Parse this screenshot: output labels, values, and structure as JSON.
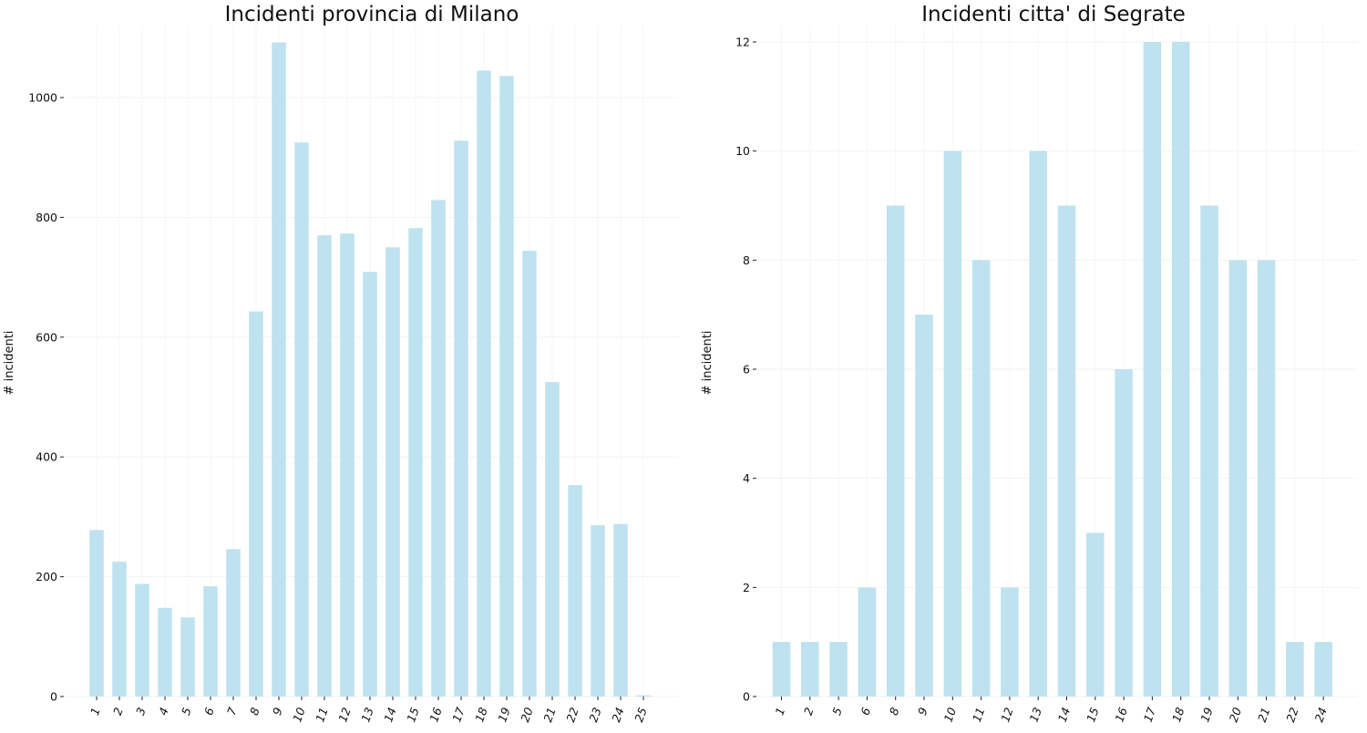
{
  "chart_data": [
    {
      "type": "bar",
      "title": "Incidenti provincia di Milano",
      "xlabel": "",
      "ylabel": "# incidenti",
      "categories": [
        "1",
        "2",
        "3",
        "4",
        "5",
        "6",
        "7",
        "8",
        "9",
        "10",
        "11",
        "12",
        "13",
        "14",
        "15",
        "16",
        "17",
        "18",
        "19",
        "20",
        "21",
        "22",
        "23",
        "24",
        "25"
      ],
      "values": [
        278,
        225,
        188,
        148,
        132,
        184,
        246,
        643,
        1092,
        925,
        770,
        773,
        709,
        750,
        782,
        829,
        928,
        1045,
        1036,
        744,
        525,
        353,
        286,
        288,
        2
      ],
      "ylim": [
        0,
        1100
      ],
      "yticks": [
        0,
        200,
        400,
        600,
        800,
        1000
      ],
      "grid": true,
      "bar_color": "#bee2ef"
    },
    {
      "type": "bar",
      "title": "Incidenti citta' di Segrate",
      "xlabel": "",
      "ylabel": "# incidenti",
      "categories": [
        "1",
        "2",
        "5",
        "6",
        "8",
        "9",
        "10",
        "11",
        "12",
        "13",
        "14",
        "15",
        "16",
        "17",
        "18",
        "19",
        "20",
        "21",
        "22",
        "24"
      ],
      "values": [
        1,
        1,
        1,
        2,
        9,
        7,
        10,
        8,
        2,
        10,
        9,
        3,
        6,
        12,
        12,
        9,
        8,
        8,
        1,
        1
      ],
      "ylim": [
        0,
        12
      ],
      "yticks": [
        0,
        2,
        4,
        6,
        8,
        10,
        12
      ],
      "grid": true,
      "bar_color": "#bee2ef"
    }
  ]
}
